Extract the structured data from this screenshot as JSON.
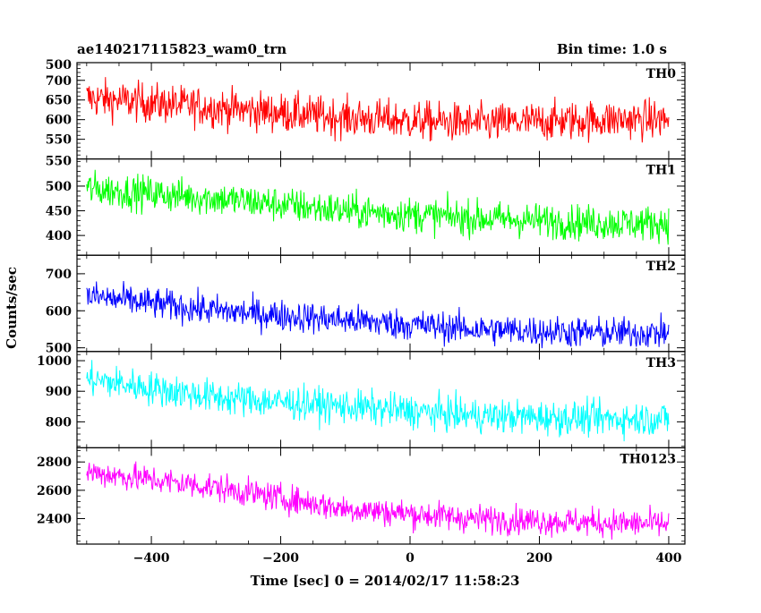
{
  "figure": {
    "title_left": "ae140217115823_wam0_trn",
    "title_right": "Bin time: 1.0 s",
    "xlabel": "Time [sec] 0 = 2014/02/17 11:58:23",
    "ylabel": "Counts/sec"
  },
  "chart_data": {
    "type": "line",
    "xlim": [
      -515,
      425
    ],
    "x_ticks": [
      -400,
      -200,
      0,
      200,
      400
    ],
    "x_range_data": [
      -500,
      400
    ],
    "bin_time_s": 1.0,
    "grid": false,
    "panels": [
      {
        "name": "TH0",
        "color": "#ff0000",
        "ylim": [
          500,
          745
        ],
        "y_ticks": [
          550,
          600,
          650,
          700
        ],
        "y_tick_labels": [
          "550",
          "600",
          "650",
          "700"
        ],
        "top_label": "500",
        "trend_x": [
          -500,
          -300,
          -100,
          100,
          300,
          400
        ],
        "trend_y": [
          655,
          630,
          605,
          590,
          600,
          600
        ],
        "noise_amp": 45
      },
      {
        "name": "TH1",
        "color": "#00ff00",
        "ylim": [
          360,
          555
        ],
        "y_ticks": [
          400,
          450,
          500
        ],
        "y_tick_labels": [
          "400",
          "450",
          "500"
        ],
        "top_label": "550",
        "trend_x": [
          -500,
          -300,
          -100,
          100,
          300,
          400
        ],
        "trend_y": [
          495,
          475,
          450,
          435,
          425,
          425
        ],
        "noise_amp": 32
      },
      {
        "name": "TH2",
        "color": "#0000ff",
        "ylim": [
          490,
          750
        ],
        "y_ticks": [
          500,
          600,
          700
        ],
        "y_tick_labels": [
          "500",
          "600",
          "700"
        ],
        "top_label": "",
        "trend_x": [
          -500,
          -300,
          -100,
          100,
          300,
          400
        ],
        "trend_y": [
          640,
          600,
          575,
          550,
          540,
          540
        ],
        "noise_amp": 38
      },
      {
        "name": "TH3",
        "color": "#00ffff",
        "ylim": [
          715,
          1030
        ],
        "y_ticks": [
          800,
          900,
          1000
        ],
        "y_tick_labels": [
          "800",
          "900",
          "1000"
        ],
        "top_label": "",
        "trend_x": [
          -500,
          -300,
          -100,
          100,
          300,
          400
        ],
        "trend_y": [
          940,
          880,
          850,
          820,
          810,
          810
        ],
        "noise_amp": 50
      },
      {
        "name": "TH0123",
        "color": "#ff00ff",
        "ylim": [
          2220,
          2900
        ],
        "y_ticks": [
          2400,
          2600,
          2800
        ],
        "y_tick_labels": [
          "2400",
          "2600",
          "2800"
        ],
        "top_label": "",
        "trend_x": [
          -500,
          -300,
          -100,
          100,
          300,
          400
        ],
        "trend_y": [
          2730,
          2620,
          2470,
          2400,
          2370,
          2360
        ],
        "noise_amp": 90
      }
    ]
  }
}
